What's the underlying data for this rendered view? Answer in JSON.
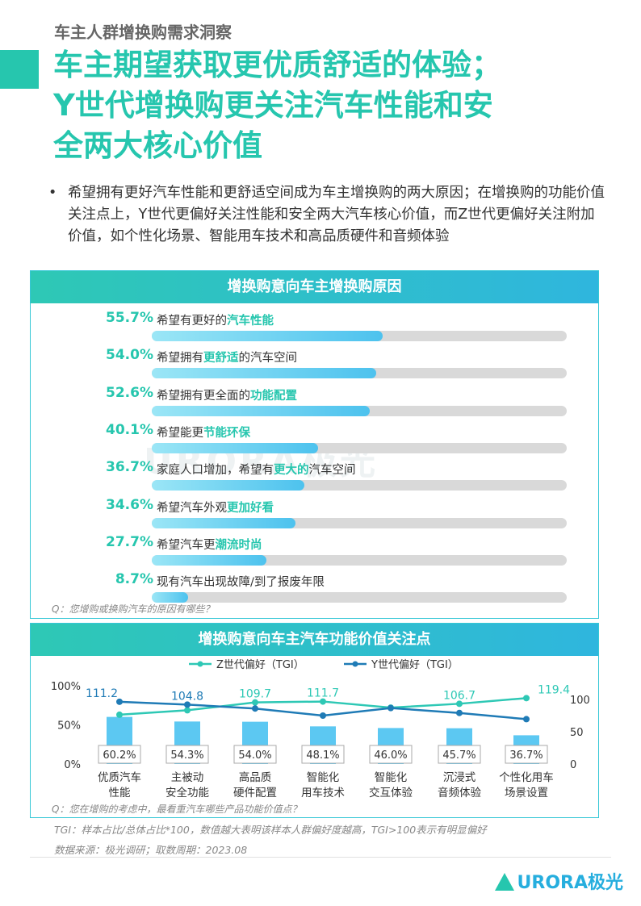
{
  "section_label": "车主人群增换购需求洞察",
  "title_lines": [
    "车主期望获取更优质舒适的体验；",
    "Y世代增换购更关注汽车性能和安",
    "全两大核心价值"
  ],
  "bullet": {
    "symbol": "•",
    "text": "希望拥有更好汽车性能和更舒适空间成为车主增换购的两大原因；在增换购的功能价值关注点上，Y世代更偏好关注性能和安全两大汽车核心价值，而Z世代更偏好关注附加价值，如个性化场景、智能用车技术和高品质硬件和音频体验"
  },
  "watermark": "URORA极光",
  "reasons_panel": {
    "title": "增换购意向车主增换购原因",
    "items": [
      {
        "pct_label": "55.7%",
        "value": 55.7,
        "pre": "希望有更好的",
        "hl": "汽车性能",
        "post": ""
      },
      {
        "pct_label": "54.0%",
        "value": 54.0,
        "pre": "希望拥有",
        "hl": "更舒适",
        "post": "的汽车空间"
      },
      {
        "pct_label": "52.6%",
        "value": 52.6,
        "pre": "希望拥有更全面的",
        "hl": "功能配置",
        "post": ""
      },
      {
        "pct_label": "40.1%",
        "value": 40.1,
        "pre": "希望能更",
        "hl": "节能环保",
        "post": ""
      },
      {
        "pct_label": "36.7%",
        "value": 36.7,
        "pre": "家庭人口增加，希望有",
        "hl": "更大的",
        "post": "汽车空间"
      },
      {
        "pct_label": "34.6%",
        "value": 34.6,
        "pre": "希望汽车外观",
        "hl": "更加好看",
        "post": ""
      },
      {
        "pct_label": "27.7%",
        "value": 27.7,
        "pre": "希望汽车更",
        "hl": "潮流时尚",
        "post": ""
      },
      {
        "pct_label": "8.7%",
        "value": 8.7,
        "pre": "现有汽车出现故障/到了报废年限",
        "hl": "",
        "post": ""
      }
    ],
    "question": "Q：您增购或换购汽车的原因有哪些？"
  },
  "chart_panel": {
    "title": "增换购意向车主汽车功能价值关注点",
    "question": "Q：您在增购的考虑中，最看重汽车哪些产品功能价值点？"
  },
  "chart_data": {
    "type": "bar",
    "title": "增换购意向车主汽车功能价值关注点",
    "categories": [
      [
        "优质汽车",
        "性能"
      ],
      [
        "主被动",
        "安全功能"
      ],
      [
        "高品质",
        "硬件配置"
      ],
      [
        "智能化",
        "用车技术"
      ],
      [
        "智能化",
        "交互体验"
      ],
      [
        "沉浸式",
        "音频体验"
      ],
      [
        "个性化用车",
        "场景设置"
      ]
    ],
    "bar_values": [
      60.2,
      54.3,
      54.0,
      48.1,
      46.0,
      45.7,
      36.7
    ],
    "bar_labels": [
      "60.2%",
      "54.3%",
      "54.0%",
      "48.1%",
      "46.0%",
      "45.7%",
      "36.7%"
    ],
    "y_left_ticks": [
      "100%",
      "50%",
      "0%"
    ],
    "y_left_lim": [
      0,
      100
    ],
    "y_right_ticks": [
      "100",
      "50",
      "0"
    ],
    "series": [
      {
        "name": "Z世代偏好（TGI）",
        "color": "#2ec8b5",
        "values": [
          82,
          92,
          109.7,
          111.7,
          98,
          106.7,
          119.4
        ]
      },
      {
        "name": "Y世代偏好（TGI）",
        "color": "#1f7bb6",
        "values": [
          111.2,
          104.8,
          96,
          80,
          97,
          86,
          72
        ]
      }
    ],
    "annotations": [
      {
        "text": "111.2",
        "series": 1,
        "index": 0
      },
      {
        "text": "104.8",
        "series": 1,
        "index": 1
      },
      {
        "text": "109.7",
        "series": 0,
        "index": 2
      },
      {
        "text": "111.7",
        "series": 0,
        "index": 3
      },
      {
        "text": "106.7",
        "series": 0,
        "index": 5
      },
      {
        "text": "119.4",
        "series": 0,
        "index": 6
      }
    ],
    "bar_color": "#5cc8f2"
  },
  "footnotes": {
    "tgi": "TGI：样本占比/总体占比*100，数值越大表明该样本人群偏好度越高，TGI>100表示有明显偏好",
    "source": "数据来源：极光调研；取数周期：2023.08"
  },
  "brand": "URORA极光"
}
